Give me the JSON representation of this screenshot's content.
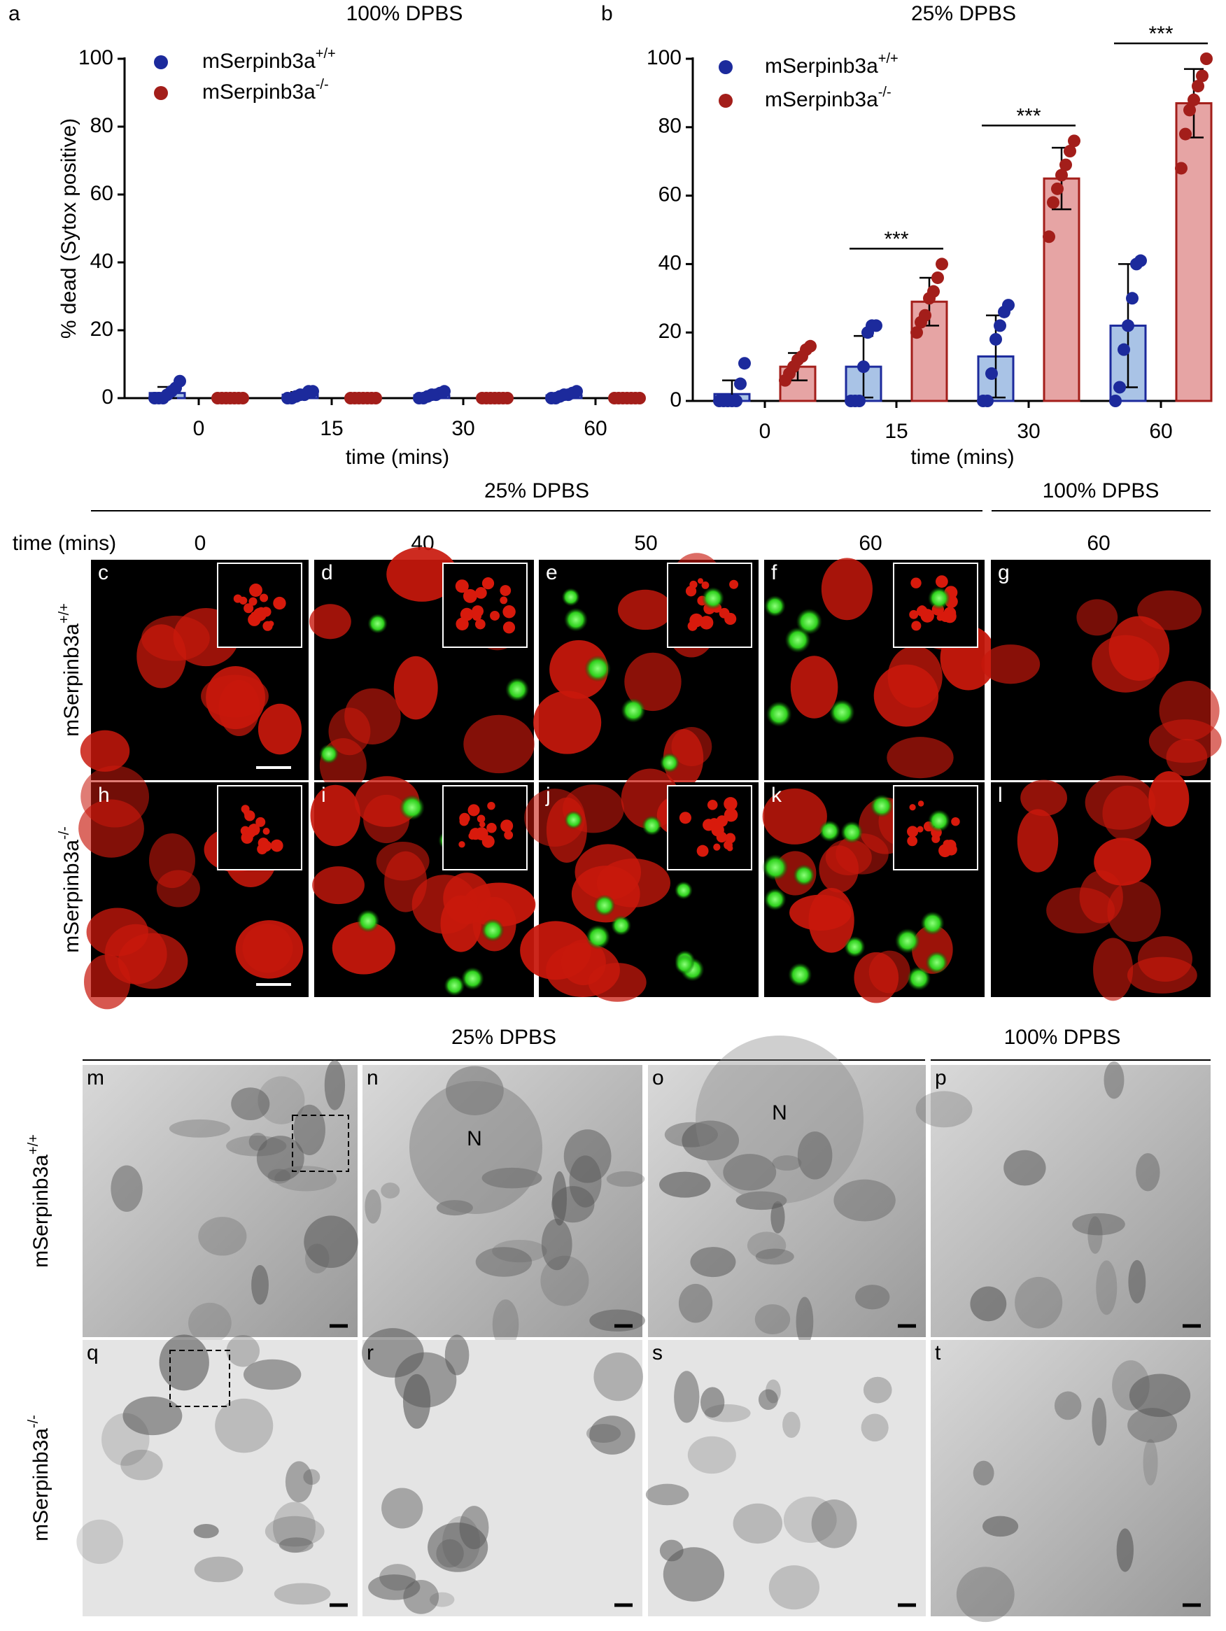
{
  "chart_data": [
    {
      "type": "bar",
      "panel": "a",
      "title": "100% DPBS",
      "xlabel": "time (mins)",
      "ylabel": "% dead (Sytox positive)",
      "categories": [
        "0",
        "15",
        "30",
        "60"
      ],
      "ylim": [
        0,
        100
      ],
      "yticks": [
        0,
        20,
        40,
        60,
        80,
        100
      ],
      "grid": false,
      "legend": "upper left",
      "series": [
        {
          "name": "mSerpinb3a",
          "name_sup": "+/+",
          "color": "#1c2a9c",
          "fill": "#a9c3e6",
          "values": [
            1.5,
            1,
            0.8,
            0.8
          ],
          "errors": [
            1.8,
            0.8,
            0.7,
            0.7
          ],
          "points": [
            [
              0,
              0,
              0,
              1,
              2,
              3,
              5
            ],
            [
              0,
              0,
              0.5,
              1,
              1,
              2,
              2
            ],
            [
              0,
              0,
              0.5,
              1,
              1,
              1.5,
              2
            ],
            [
              0,
              0,
              0.5,
              1,
              1,
              1.5,
              2
            ]
          ]
        },
        {
          "name": "mSerpinb3a",
          "name_sup": "-/-",
          "color": "#a31e1a",
          "fill": "#e6a4a4",
          "values": [
            0,
            0,
            0,
            0
          ],
          "errors": [
            0,
            0,
            0,
            0
          ],
          "points": [
            [
              0,
              0,
              0,
              0,
              0,
              0,
              0
            ],
            [
              0,
              0,
              0,
              0,
              0,
              0,
              0
            ],
            [
              0,
              0,
              0,
              0,
              0,
              0,
              0
            ],
            [
              0,
              0,
              0,
              0,
              0,
              0,
              0
            ]
          ]
        }
      ],
      "annotations": []
    },
    {
      "type": "bar",
      "panel": "b",
      "title": "25% DPBS",
      "xlabel": "time (mins)",
      "categories": [
        "0",
        "15",
        "30",
        "60"
      ],
      "ylim": [
        0,
        100
      ],
      "yticks": [
        0,
        20,
        40,
        60,
        80,
        100
      ],
      "grid": false,
      "legend": "upper left",
      "series": [
        {
          "name": "mSerpinb3a",
          "name_sup": "+/+",
          "color": "#1c2a9c",
          "fill": "#a9c3e6",
          "values": [
            2,
            10,
            13,
            22
          ],
          "errors": [
            4,
            9,
            12,
            18
          ],
          "points": [
            [
              0,
              0,
              0,
              0,
              0,
              5,
              11
            ],
            [
              0,
              0,
              0,
              10,
              20,
              22,
              22
            ],
            [
              0,
              0,
              8,
              18,
              22,
              26,
              28
            ],
            [
              0,
              4,
              15,
              22,
              30,
              40,
              41
            ]
          ]
        },
        {
          "name": "mSerpinb3a",
          "name_sup": "-/-",
          "color": "#a31e1a",
          "fill": "#e6a4a4",
          "values": [
            10,
            29,
            65,
            87
          ],
          "errors": [
            4,
            7,
            9,
            10
          ],
          "points": [
            [
              6,
              8,
              10,
              12,
              13,
              15,
              16
            ],
            [
              20,
              23,
              25,
              30,
              32,
              36,
              40
            ],
            [
              48,
              58,
              62,
              66,
              69,
              73,
              76
            ],
            [
              68,
              78,
              85,
              88,
              92,
              95,
              100
            ]
          ]
        }
      ],
      "annotations": [
        {
          "text": "***",
          "category": "15"
        },
        {
          "text": "***",
          "category": "30"
        },
        {
          "text": "***",
          "category": "60"
        }
      ]
    }
  ],
  "fluorescence": {
    "groups": [
      "25% DPBS",
      "100% DPBS"
    ],
    "time_label": "time (mins)",
    "times": [
      0,
      40,
      50,
      60,
      60
    ],
    "rows": [
      {
        "name": "mSerpinb3a",
        "sup": "+/+",
        "panels": [
          "c",
          "d",
          "e",
          "f",
          "g"
        ]
      },
      {
        "name": "mSerpinb3a",
        "sup": "-/-",
        "panels": [
          "h",
          "i",
          "j",
          "k",
          "l"
        ]
      }
    ]
  },
  "em": {
    "groups": [
      "25% DPBS",
      "100% DPBS"
    ],
    "rows": [
      {
        "name": "mSerpinb3a",
        "sup": "+/+",
        "panels": [
          "m",
          "n",
          "o",
          "p"
        ]
      },
      {
        "name": "mSerpinb3a",
        "sup": "-/-",
        "panels": [
          "q",
          "r",
          "s",
          "t"
        ]
      }
    ],
    "nucleus_labels": [
      "N",
      "N"
    ]
  }
}
